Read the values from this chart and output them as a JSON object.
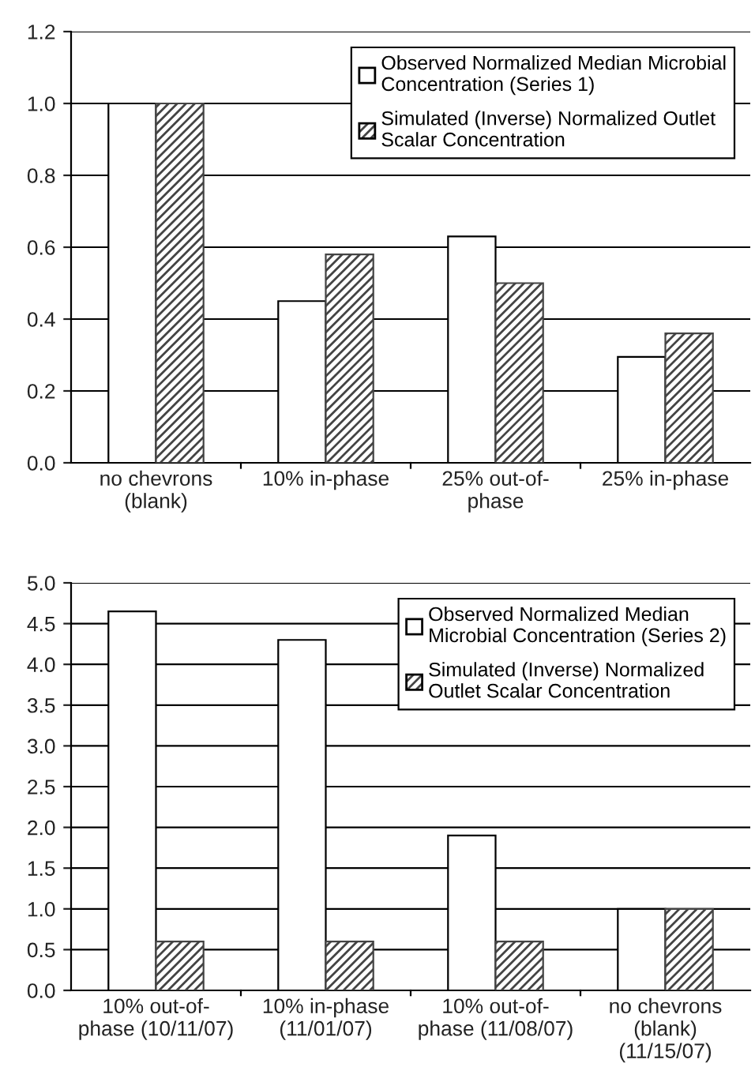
{
  "chart_data": [
    {
      "type": "bar",
      "categories": [
        "no chevrons\n(blank)",
        "10% in-phase",
        "25% out-of-\nphase",
        "25% in-phase"
      ],
      "series": [
        {
          "name": "Observed Normalized Median Microbial\nConcentration (Series 1)",
          "color": "#ffffff",
          "values": [
            1.0,
            0.45,
            0.63,
            0.295
          ]
        },
        {
          "name": "Simulated (Inverse) Normalized Outlet\nScalar Concentration",
          "color": "#444444",
          "values": [
            1.0,
            0.58,
            0.5,
            0.36
          ]
        }
      ],
      "ylim": [
        0,
        1.2
      ],
      "yticks": [
        {
          "value": 0,
          "label": "0.0"
        },
        {
          "value": 0.2,
          "label": "0.2"
        },
        {
          "value": 0.4,
          "label": "0.4"
        },
        {
          "value": 0.6,
          "label": "0.6"
        },
        {
          "value": 0.8,
          "label": "0.8"
        },
        {
          "value": 1.0,
          "label": "1.0"
        },
        {
          "value": 1.2,
          "label": "1.2"
        }
      ],
      "grid": "y",
      "legend": "top right"
    },
    {
      "type": "bar",
      "categories": [
        "10% out-of-\nphase (10/11/07)",
        "10% in-phase\n(11/01/07)",
        "10% out-of-\nphase (11/08/07)",
        "no chevrons\n(blank)\n(11/15/07)"
      ],
      "series": [
        {
          "name": "Observed Normalized Median\nMicrobial Concentration (Series 2)",
          "color": "#ffffff",
          "values": [
            4.65,
            4.3,
            1.9,
            1.0
          ]
        },
        {
          "name": "Simulated (Inverse) Normalized\nOutlet Scalar Concentration",
          "color": "#444444",
          "values": [
            0.6,
            0.6,
            0.6,
            1.0
          ]
        }
      ],
      "ylim": [
        0,
        5
      ],
      "yticks": [
        {
          "value": 0,
          "label": "0.0"
        },
        {
          "value": 0.5,
          "label": "0.5"
        },
        {
          "value": 1,
          "label": "1.0"
        },
        {
          "value": 1.5,
          "label": "1.5"
        },
        {
          "value": 2,
          "label": "2.0"
        },
        {
          "value": 2.5,
          "label": "2.5"
        },
        {
          "value": 3,
          "label": "3.0"
        },
        {
          "value": 3.5,
          "label": "3.5"
        },
        {
          "value": 4,
          "label": "4.0"
        },
        {
          "value": 4.5,
          "label": "4.5"
        },
        {
          "value": 5,
          "label": "5.0"
        }
      ],
      "grid": "y",
      "legend": "top right"
    }
  ]
}
